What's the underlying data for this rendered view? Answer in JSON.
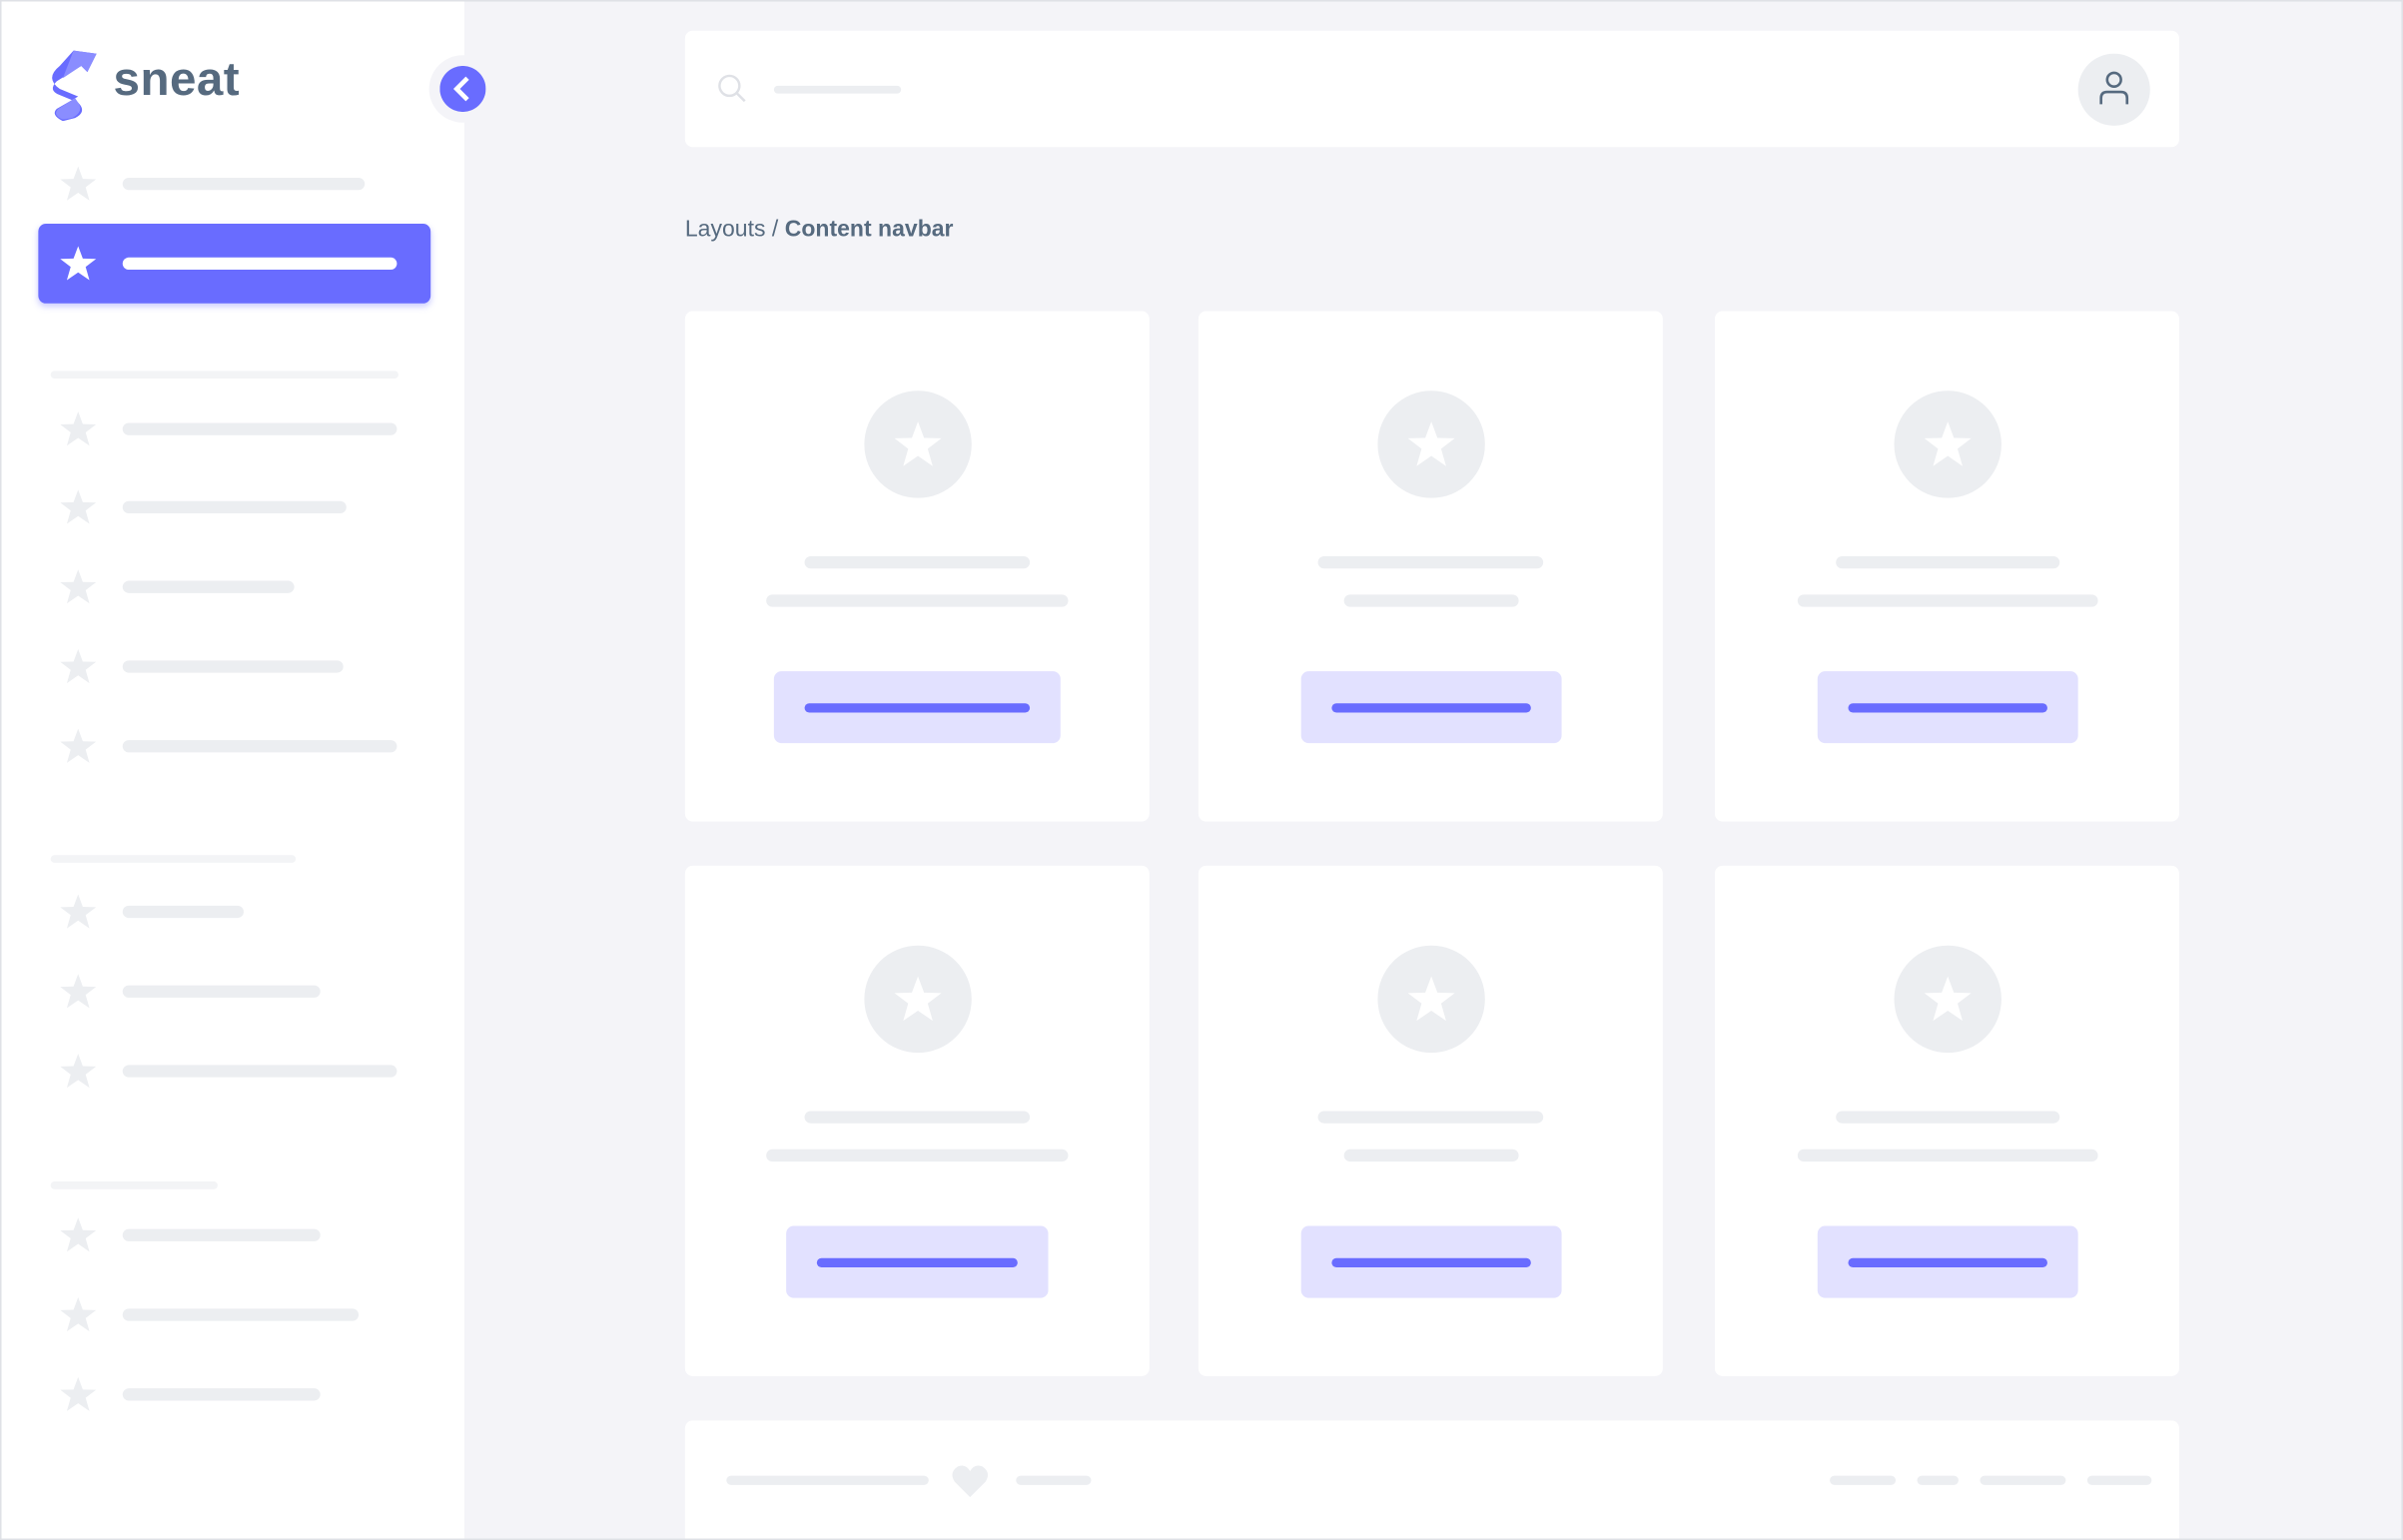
{
  "brand": {
    "name": "sneat"
  },
  "breadcrumb": {
    "parent": "Layouts",
    "separator": " / ",
    "current": "Content navbar"
  },
  "colors": {
    "primary": "#696cff",
    "primary_light": "#e2e1ff",
    "text": "#566a7f",
    "background": "#f4f4f8",
    "placeholder": "#eceef1"
  },
  "sidebar": {
    "active_index": 1,
    "groups": [
      {
        "items": [
          {
            "icon": "star-icon"
          },
          {
            "icon": "star-icon",
            "active": true
          }
        ]
      },
      {
        "items": [
          {
            "icon": "star-icon"
          },
          {
            "icon": "star-icon"
          },
          {
            "icon": "star-icon"
          },
          {
            "icon": "star-icon"
          },
          {
            "icon": "star-icon"
          }
        ]
      },
      {
        "items": [
          {
            "icon": "star-icon"
          },
          {
            "icon": "star-icon"
          },
          {
            "icon": "star-icon"
          }
        ]
      },
      {
        "items": [
          {
            "icon": "star-icon"
          },
          {
            "icon": "star-icon"
          },
          {
            "icon": "star-icon"
          }
        ]
      }
    ]
  },
  "navbar": {
    "search_icon": "search-icon",
    "avatar_icon": "user-icon"
  },
  "cards": [
    {
      "icon": "star-icon"
    },
    {
      "icon": "star-icon"
    },
    {
      "icon": "star-icon"
    },
    {
      "icon": "star-icon"
    },
    {
      "icon": "star-icon"
    },
    {
      "icon": "star-icon"
    }
  ],
  "footer": {
    "icon": "heart-icon"
  }
}
